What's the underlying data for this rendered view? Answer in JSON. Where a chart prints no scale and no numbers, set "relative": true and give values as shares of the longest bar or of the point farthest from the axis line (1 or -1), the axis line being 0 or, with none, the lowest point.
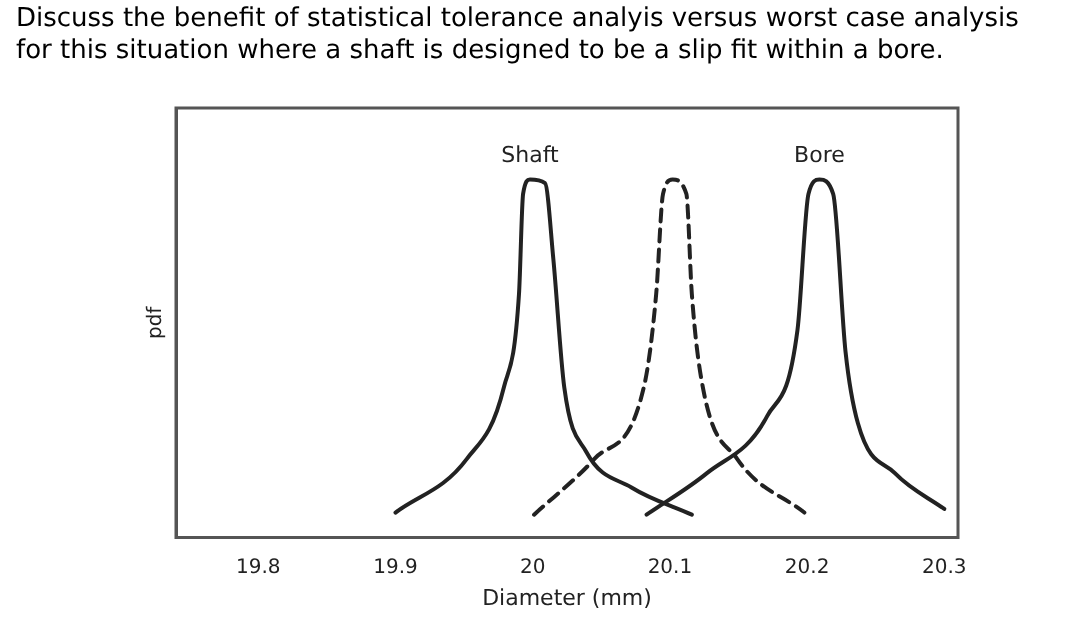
{
  "chart_data": {
    "type": "line",
    "title": "Discuss the benefit of statistical tolerance analyis versus worst case analysis for this situation where a shaft is designed to be a slip fit within a bore.",
    "xlabel": "Diameter (mm)",
    "ylabel": "pdf",
    "relative": true,
    "xlim": [
      19.74,
      20.31
    ],
    "xticks": [
      19.8,
      19.9,
      20,
      20.1,
      20.2,
      20.3
    ],
    "grid": false,
    "legend": false,
    "marker": "none",
    "series": [
      {
        "name": "Shaft",
        "color": "#222222",
        "line_style": "solid",
        "x": [
          19.9,
          19.952,
          19.979,
          19.99,
          19.993,
          19.998,
          20.009,
          20.015,
          20.023,
          20.039,
          20.072,
          20.116
        ],
        "values": [
          0.07,
          0.22,
          0.42,
          0.68,
          0.96,
          1,
          0.99,
          0.78,
          0.42,
          0.24,
          0.14,
          0.064
        ]
      },
      {
        "color": "#222222",
        "line_style": "dashed",
        "x": [
          20.001,
          20.045,
          20.081,
          20.09,
          20.095,
          20.102,
          20.112,
          20.116,
          20.124,
          20.149,
          20.198
        ],
        "values": [
          0.064,
          0.22,
          0.42,
          0.68,
          0.96,
          1,
          0.96,
          0.68,
          0.42,
          0.22,
          0.07
        ]
      },
      {
        "name": "Bore",
        "color": "#222222",
        "line_style": "solid",
        "x": [
          20.083,
          20.127,
          20.171,
          20.193,
          20.201,
          20.209,
          20.219,
          20.228,
          20.237,
          20.264,
          20.3
        ],
        "values": [
          0.064,
          0.18,
          0.34,
          0.58,
          0.96,
          1,
          0.96,
          0.52,
          0.32,
          0.18,
          0.08
        ]
      }
    ]
  }
}
